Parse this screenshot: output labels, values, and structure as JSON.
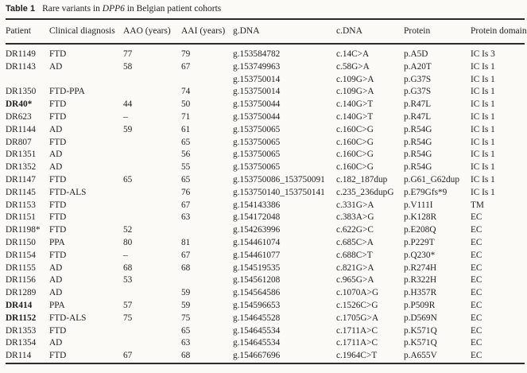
{
  "caption": {
    "label": "Table 1",
    "pre": "Rare variants in ",
    "gene": "DPP6",
    "post": " in Belgian patient cohorts"
  },
  "colors": {
    "background": "#fbfaf7",
    "text": "#1e1e1e",
    "rule": "#2b2b2b"
  },
  "table": {
    "columns": [
      "Patient",
      "Clinical diagnosis",
      "AAO (years)",
      "AAI (years)",
      "g.DNA",
      "c.DNA",
      "Protein",
      "Protein domain"
    ],
    "column_keys": [
      "patient",
      "diagnosis",
      "aao",
      "aai",
      "gdna",
      "cdna",
      "protein",
      "domain"
    ],
    "bold_patients": [
      "DR40*",
      "DR414",
      "DR1152"
    ],
    "rows": [
      [
        "DR1149",
        "FTD",
        "77",
        "79",
        "g.153584782",
        "c.14C>A",
        "p.A5D",
        "IC Is 3"
      ],
      [
        "DR1143",
        "AD",
        "58",
        "67",
        "g.153749963",
        "c.58G>A",
        "p.A20T",
        "IC Is 1"
      ],
      [
        "",
        "",
        "",
        "",
        "g.153750014",
        "c.109G>A",
        "p.G37S",
        "IC Is 1"
      ],
      [
        "DR1350",
        "FTD-PPA",
        "",
        "74",
        "g.153750014",
        "c.109G>A",
        "p.G37S",
        "IC Is 1"
      ],
      [
        "DR40*",
        "FTD",
        "44",
        "50",
        "g.153750044",
        "c.140G>T",
        "p.R47L",
        "IC Is 1"
      ],
      [
        "DR623",
        "FTD",
        "–",
        "71",
        "g.153750044",
        "c.140G>T",
        "p.R47L",
        "IC Is 1"
      ],
      [
        "DR1144",
        "AD",
        "59",
        "61",
        "g.153750065",
        "c.160C>G",
        "p.R54G",
        "IC Is 1"
      ],
      [
        "DR807",
        "FTD",
        "",
        "65",
        "g.153750065",
        "c.160C>G",
        "p.R54G",
        "IC Is 1"
      ],
      [
        "DR1351",
        "AD",
        "",
        "56",
        "g.153750065",
        "c.160C>G",
        "p.R54G",
        "IC Is 1"
      ],
      [
        "DR1352",
        "AD",
        "",
        "55",
        "g.153750065",
        "c.160C>G",
        "p.R54G",
        "IC Is 1"
      ],
      [
        "DR1147",
        "FTD",
        "65",
        "65",
        "g.153750086_153750091",
        "c.182_187dup",
        "p.G61_G62dup",
        "IC Is 1"
      ],
      [
        "DR1145",
        "FTD-ALS",
        "",
        "76",
        "g.153750140_153750141",
        "c.235_236dupG",
        "p.E79Gfs*9",
        "IC Is 1"
      ],
      [
        "DR1153",
        "FTD",
        "",
        "67",
        "g.154143386",
        "c.331G>A",
        "p.V111I",
        "TM"
      ],
      [
        "DR1151",
        "FTD",
        "",
        "63",
        "g.154172048",
        "c.383A>G",
        "p.K128R",
        "EC"
      ],
      [
        "DR1198*",
        "FTD",
        "52",
        "",
        "g.154263996",
        "c.622G>C",
        "p.E208Q",
        "EC"
      ],
      [
        "DR1150",
        "PPA",
        "80",
        "81",
        "g.154461074",
        "c.685C>A",
        "p.P229T",
        "EC"
      ],
      [
        "DR1154",
        "FTD",
        "–",
        "67",
        "g.154461077",
        "c.688C>T",
        "p.Q230*",
        "EC"
      ],
      [
        "DR1155",
        "AD",
        "68",
        "68",
        "g.154519535",
        "c.821G>A",
        "p.R274H",
        "EC"
      ],
      [
        "DR1156",
        "AD",
        "53",
        "",
        "g.154561208",
        "c.965G>A",
        "p.R322H",
        "EC"
      ],
      [
        "DR1289",
        "AD",
        "",
        "59",
        "g.154564586",
        "c.1070A>G",
        "p.H357R",
        "EC"
      ],
      [
        "DR414",
        "PPA",
        "57",
        "59",
        "g.154596653",
        "c.1526C>G",
        "p.P509R",
        "EC"
      ],
      [
        "DR1152",
        "FTD-ALS",
        "75",
        "75",
        "g.154645528",
        "c.1705G>A",
        "p.D569N",
        "EC"
      ],
      [
        "DR1353",
        "FTD",
        "",
        "65",
        "g.154645534",
        "c.1711A>C",
        "p.K571Q",
        "EC"
      ],
      [
        "DR1354",
        "AD",
        "",
        "63",
        "g.154645534",
        "c.1711A>C",
        "p.K571Q",
        "EC"
      ],
      [
        "DR114",
        "FTD",
        "67",
        "68",
        "g.154667696",
        "c.1964C>T",
        "p.A655V",
        "EC"
      ]
    ]
  }
}
